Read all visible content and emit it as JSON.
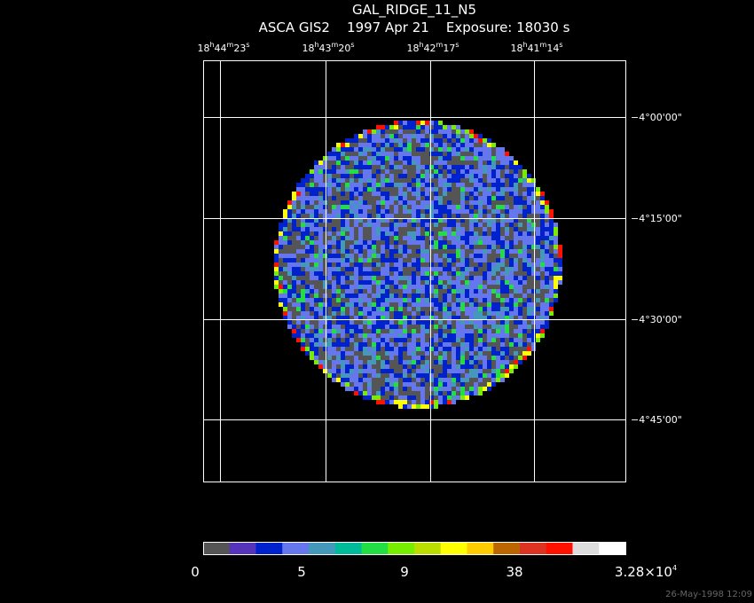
{
  "header": {
    "title": "GAL_RIDGE_11_N5",
    "subtitle": "ASCA GIS2    1997 Apr 21    Exposure: 18030 s"
  },
  "ra_labels": [
    [
      "18",
      "h",
      "44",
      "m",
      "23",
      "s"
    ],
    [
      "18",
      "h",
      "43",
      "m",
      "20",
      "s"
    ],
    [
      "18",
      "h",
      "42",
      "m",
      "17",
      "s"
    ],
    [
      "18",
      "h",
      "41",
      "m",
      "14",
      "s"
    ]
  ],
  "dec_labels": [
    "−4°00'00\"",
    "−4°15'00\"",
    "−4°30'00\"",
    "−4°45'00\""
  ],
  "colorbar": {
    "colors": [
      "#555555",
      "#5533bb",
      "#0022cc",
      "#6677ee",
      "#4499bb",
      "#00bb99",
      "#22dd44",
      "#77ee00",
      "#bbdd00",
      "#ffff00",
      "#ffcc00",
      "#bb6600",
      "#dd3322",
      "#ff1100",
      "#dddddd",
      "#ffffff"
    ],
    "labels": [
      "0",
      "5",
      "9",
      "38",
      [
        "3.28×10",
        "4"
      ]
    ]
  },
  "timestamp": "26-May-1998 12:09"
}
